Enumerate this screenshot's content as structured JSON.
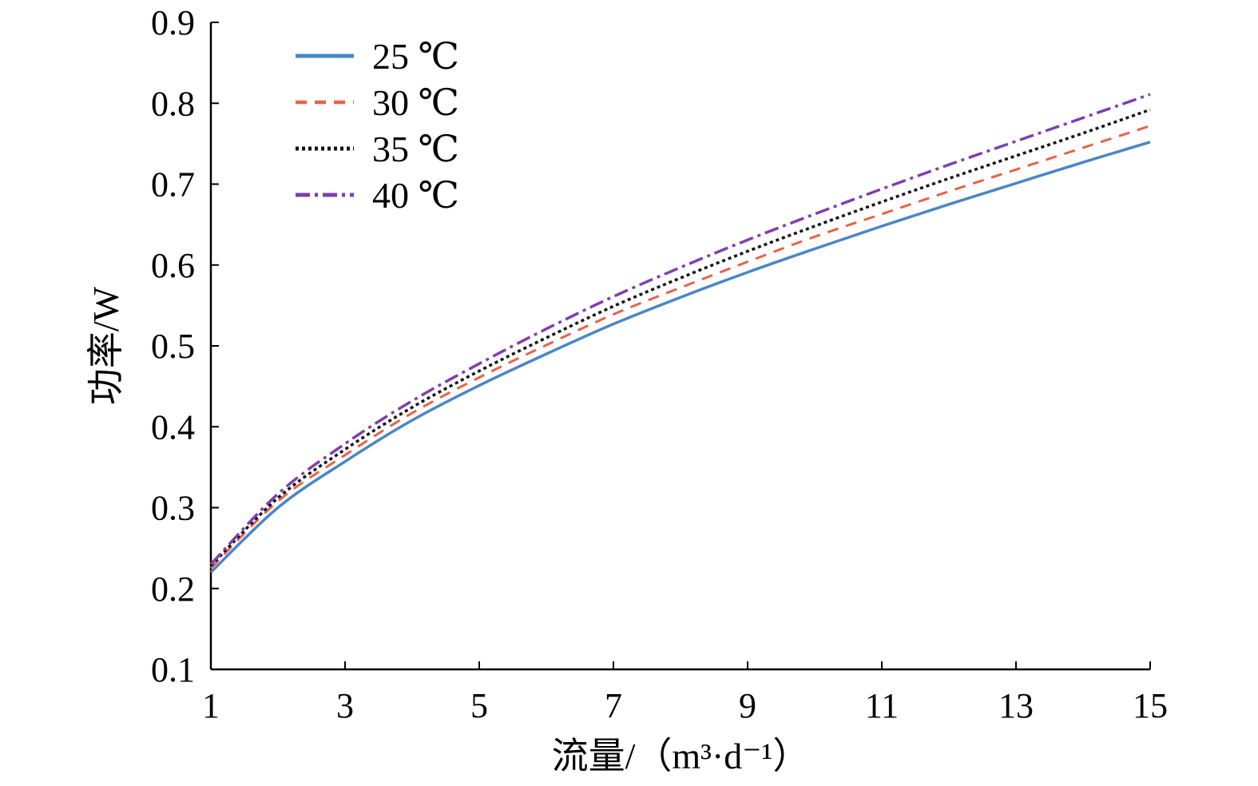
{
  "chart_data": {
    "type": "line",
    "title": "",
    "xlabel": "流量/（m³·d⁻¹）",
    "ylabel": "功率/W",
    "xlim": [
      1,
      15
    ],
    "ylim": [
      0.1,
      0.9
    ],
    "xticks": [
      1,
      3,
      5,
      7,
      9,
      11,
      13,
      15
    ],
    "yticks": [
      0.1,
      0.2,
      0.3,
      0.4,
      0.5,
      0.6,
      0.7,
      0.8,
      0.9
    ],
    "grid": false,
    "legend_position": "top-left",
    "x": [
      1,
      2,
      3,
      4,
      5,
      6,
      7,
      8,
      9,
      10,
      11,
      12,
      13,
      14,
      15
    ],
    "series": [
      {
        "name": "25 ℃",
        "color": "#4a86c5",
        "dash": "solid",
        "values": [
          0.22,
          0.3,
          0.357,
          0.408,
          0.451,
          0.49,
          0.527,
          0.56,
          0.591,
          0.62,
          0.648,
          0.675,
          0.701,
          0.727,
          0.752
        ]
      },
      {
        "name": "30 ℃",
        "color": "#e8624a",
        "dash": "dashed",
        "values": [
          0.225,
          0.308,
          0.365,
          0.417,
          0.461,
          0.501,
          0.539,
          0.572,
          0.604,
          0.635,
          0.663,
          0.691,
          0.718,
          0.745,
          0.772
        ]
      },
      {
        "name": "35 ℃",
        "color": "#111111",
        "dash": "dotted",
        "values": [
          0.228,
          0.312,
          0.372,
          0.424,
          0.469,
          0.51,
          0.549,
          0.584,
          0.617,
          0.648,
          0.678,
          0.707,
          0.735,
          0.763,
          0.792
        ]
      },
      {
        "name": "40 ℃",
        "color": "#7f3fae",
        "dash": "dashdot",
        "values": [
          0.23,
          0.317,
          0.379,
          0.432,
          0.478,
          0.521,
          0.561,
          0.597,
          0.631,
          0.663,
          0.694,
          0.724,
          0.753,
          0.782,
          0.811
        ]
      }
    ]
  }
}
